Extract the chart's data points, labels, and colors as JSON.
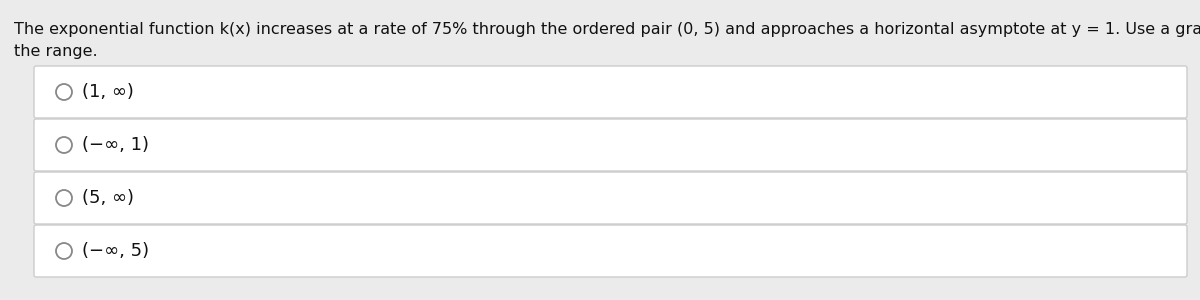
{
  "background_color": "#ebebeb",
  "question_text": "The exponential function k(x) increases at a rate of 75% through the ordered pair (0, 5) and approaches a horizontal asymptote at y = 1. Use a graph of the function to determine\nthe range.",
  "options": [
    "(1, ∞)",
    "(−∞, 1)",
    "(5, ∞)",
    "(−∞, 5)"
  ],
  "option_box_color": "#ffffff",
  "option_box_edge_color": "#cccccc",
  "circle_color": "#888888",
  "text_color": "#111111",
  "question_fontsize": 11.5,
  "option_fontsize": 13.0,
  "fig_width": 12.0,
  "fig_height": 3.0,
  "dpi": 100
}
